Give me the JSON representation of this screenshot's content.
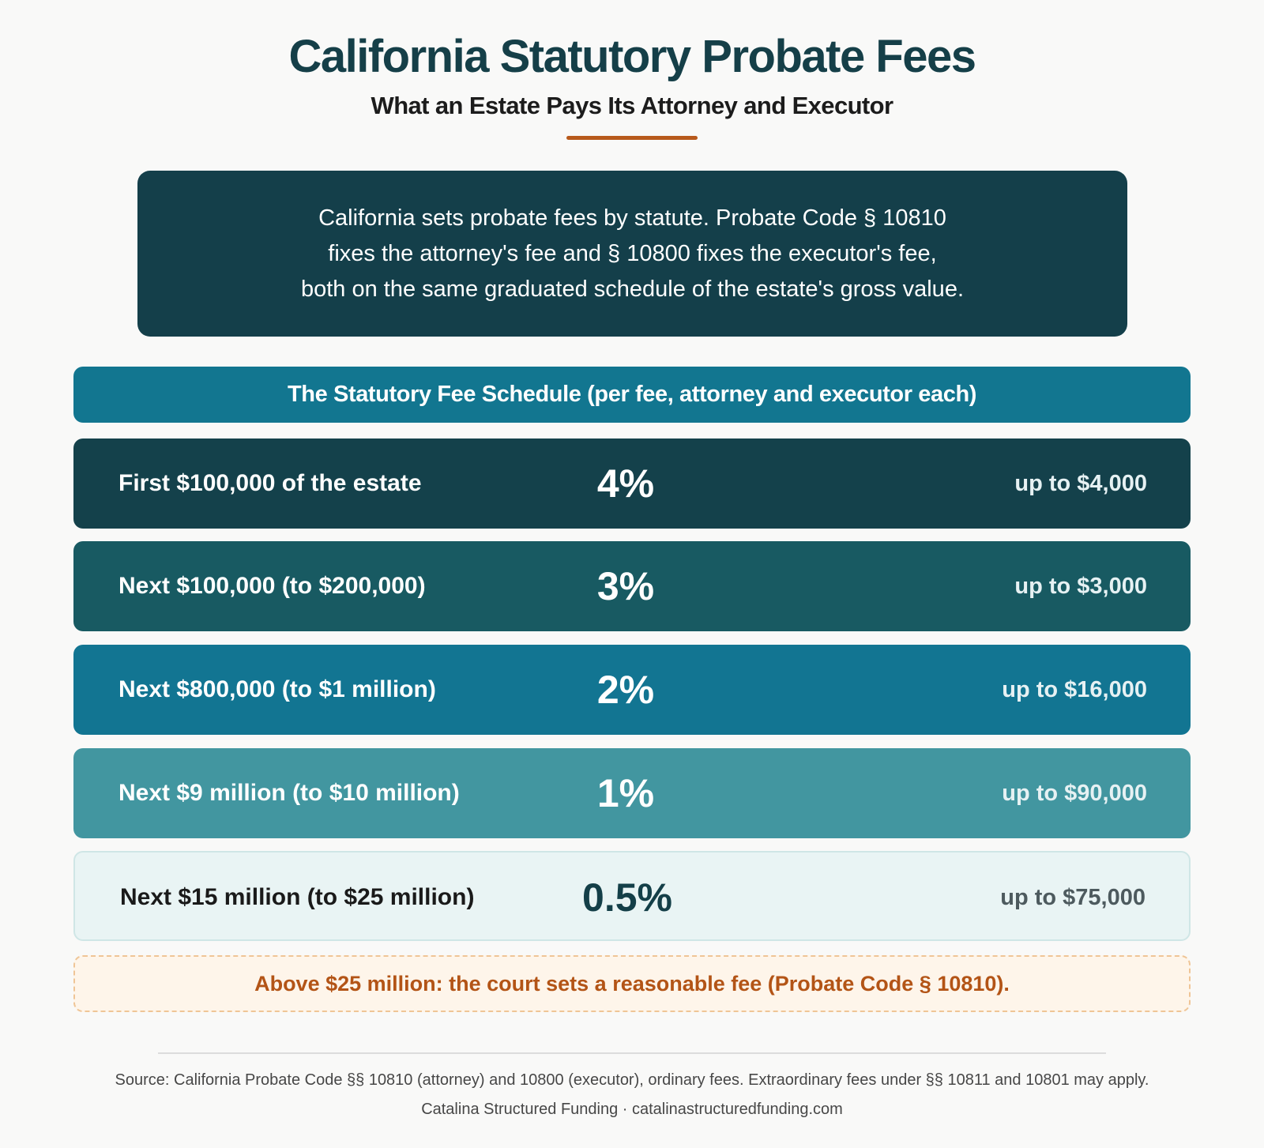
{
  "title": "California Statutory Probate Fees",
  "subtitle": "What an Estate Pays Its Attorney and Executor",
  "intro": {
    "lines": [
      "California sets probate fees by statute. Probate Code § 10810",
      "fixes the attorney's fee and § 10800 fixes the executor's fee,",
      "both on the same graduated schedule of the estate's gross value."
    ]
  },
  "schedule": {
    "header": "The Statutory Fee Schedule (per fee, attorney and executor each)",
    "tiers": [
      {
        "range": "First $100,000 of the estate",
        "rate": "4%",
        "cap": "up to $4,000"
      },
      {
        "range": "Next $100,000 (to $200,000)",
        "rate": "3%",
        "cap": "up to $3,000"
      },
      {
        "range": "Next $800,000 (to $1 million)",
        "rate": "2%",
        "cap": "up to $16,000"
      },
      {
        "range": "Next $9 million (to $10 million)",
        "rate": "1%",
        "cap": "up to $90,000"
      },
      {
        "range": "Next $15 million (to $25 million)",
        "rate": "0.5%",
        "cap": "up to $75,000"
      }
    ],
    "above_note": "Above $25 million: the court sets a reasonable fee (Probate Code § 10810)."
  },
  "footer": {
    "source": "Source: California Probate Code §§ 10810 (attorney) and 10800 (executor), ordinary fees. Extraordinary fees under §§ 10811 and 10801 may apply.",
    "credit": "Catalina Structured Funding · catalinastructuredfunding.com"
  },
  "colors": {
    "title": "#153f48",
    "accent_rule": "#b85a1c",
    "intro_bg": "#143f4a",
    "header_bg": "#127690",
    "tier_1": "#14414b",
    "tier_2": "#185a62",
    "tier_3": "#127592",
    "tier_4": "#4296a0",
    "tier_5": "#e9f4f4",
    "note_text": "#b35416",
    "note_bg": "#fef5ea"
  }
}
